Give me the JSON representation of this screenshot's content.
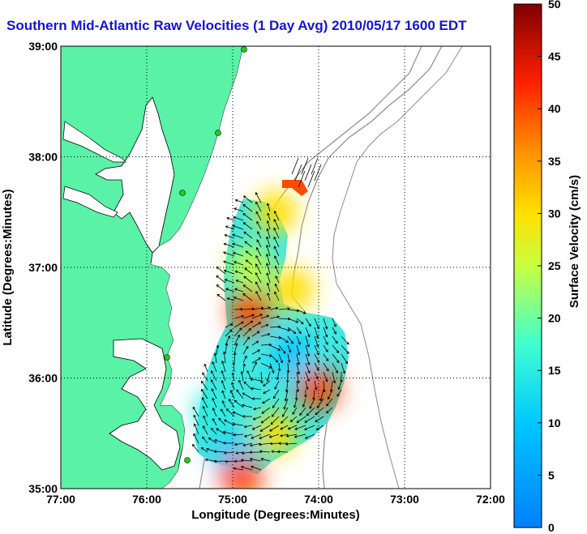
{
  "chart_data": {
    "type": "vector-field-heatmap",
    "title": "Southern Mid-Atlantic Raw Velocities (1 Day Avg) 2010/05/17 1600 EDT",
    "xlabel": "Longitude (Degrees:Minutes)",
    "ylabel": "Latitude (Degrees:Minutes)",
    "x_ticks": [
      "77:00",
      "76:00",
      "75:00",
      "74:00",
      "73:00",
      "72:00"
    ],
    "y_ticks": [
      "39:00",
      "38:00",
      "37:00",
      "36:00",
      "35:00"
    ],
    "xlim_west_deg": [
      77,
      72
    ],
    "ylim_north_deg": [
      35,
      39
    ],
    "grid": true,
    "colorbar": {
      "label": "Surface Velocity (cm/s)",
      "range": [
        0,
        50
      ],
      "ticks": [
        0,
        5,
        10,
        15,
        20,
        25,
        30,
        35,
        40,
        45,
        50
      ]
    },
    "land_color": "#59f2a6",
    "coastline_color": "#000000",
    "bathymetry_color": "#8c8c8c",
    "velocity_grid": [
      {
        "lat": 37.5,
        "lon_w": 74.5,
        "speed": 30
      },
      {
        "lat": 37.0,
        "lon_w": 74.8,
        "speed": 25
      },
      {
        "lat": 36.8,
        "lon_w": 74.3,
        "speed": 30
      },
      {
        "lat": 36.6,
        "lon_w": 74.8,
        "speed": 40
      },
      {
        "lat": 36.2,
        "lon_w": 74.3,
        "speed": 10
      },
      {
        "lat": 35.9,
        "lon_w": 74.0,
        "speed": 40
      },
      {
        "lat": 35.7,
        "lon_w": 75.2,
        "speed": 15
      },
      {
        "lat": 35.5,
        "lon_w": 74.5,
        "speed": 30
      },
      {
        "lat": 35.3,
        "lon_w": 75.0,
        "speed": 10
      },
      {
        "lat": 35.1,
        "lon_w": 74.9,
        "speed": 40
      }
    ]
  }
}
